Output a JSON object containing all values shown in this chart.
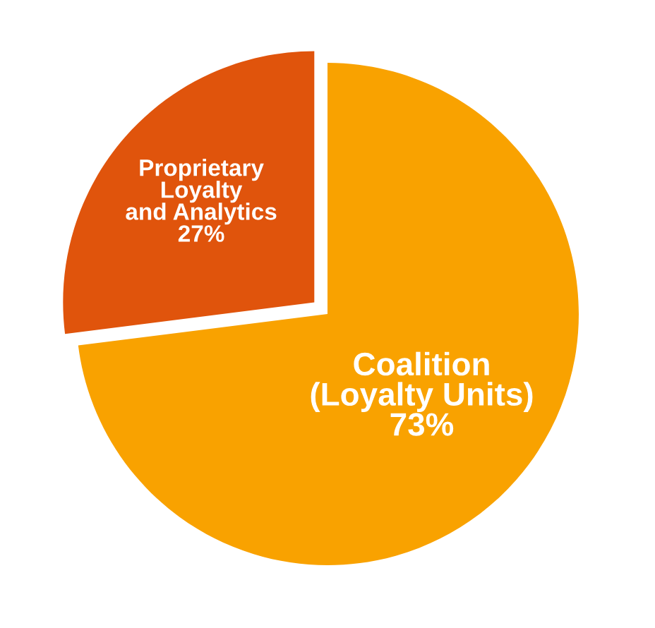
{
  "chart_data": {
    "type": "pie",
    "categories": [
      "Proprietary\nLoyalty\nand Analytics",
      "Coalition\n(Loyalty Units)"
    ],
    "values": [
      27,
      73
    ],
    "colors": [
      "#e0540c",
      "#f9a200"
    ],
    "value_labels": [
      "27%",
      "73%"
    ]
  }
}
